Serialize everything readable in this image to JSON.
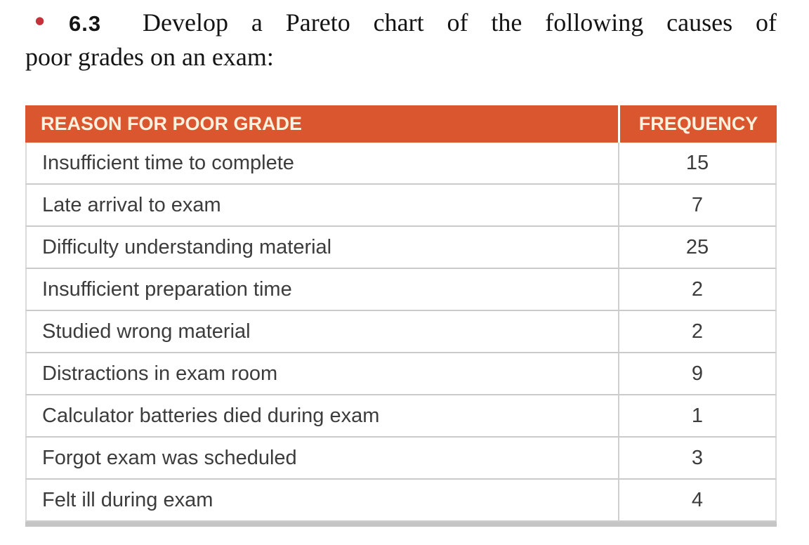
{
  "problem": {
    "bullet_icon": "●",
    "number": "6.3",
    "line1": "Develop a Pareto chart of the following causes of",
    "line2": "poor grades on an exam:"
  },
  "table": {
    "headers": [
      "REASON FOR POOR GRADE",
      "FREQUENCY"
    ],
    "rows": [
      {
        "reason": "Insufficient time to complete",
        "frequency": "15"
      },
      {
        "reason": "Late arrival to exam",
        "frequency": "7"
      },
      {
        "reason": "Difficulty understanding material",
        "frequency": "25"
      },
      {
        "reason": "Insufficient preparation time",
        "frequency": "2"
      },
      {
        "reason": "Studied wrong material",
        "frequency": "2"
      },
      {
        "reason": "Distractions in exam room",
        "frequency": "9"
      },
      {
        "reason": "Calculator batteries died during exam",
        "frequency": "1"
      },
      {
        "reason": "Forgot exam was scheduled",
        "frequency": "3"
      },
      {
        "reason": "Felt ill during exam",
        "frequency": "4"
      }
    ]
  },
  "colors": {
    "header_background": "#D9562E",
    "header_text": "#FAF0DE",
    "bullet": "#C4323B",
    "body_text": "#3C3C3C",
    "gridline": "#CBCBCB",
    "bottom_bar": "#C5C5C5"
  }
}
